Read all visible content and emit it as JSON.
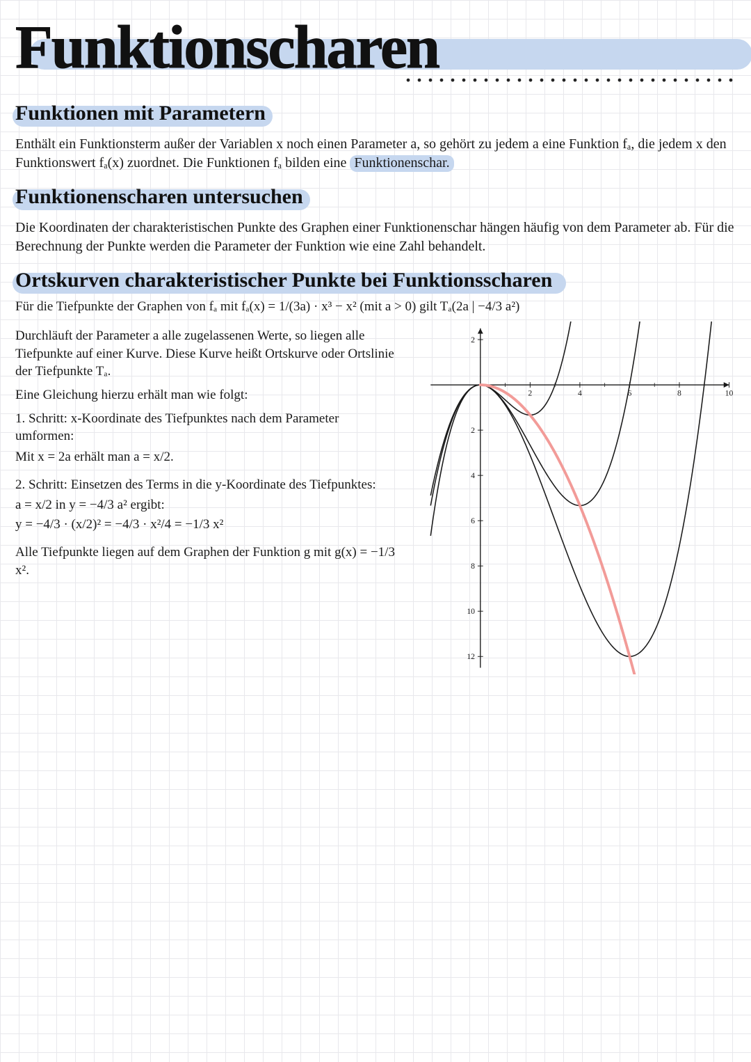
{
  "title": "Funktionscharen",
  "dots": "..............................",
  "sections": {
    "s1": {
      "heading": "Funktionen mit Parametern",
      "body": "Enthält ein Funktionsterm außer der Variablen x noch einen Parameter a, so gehört zu jedem a eine Funktion fₐ, die jedem x den Funktionswert fₐ(x) zuordnet. Die Funktionen fₐ bilden eine",
      "body_hl": "Funktionenschar."
    },
    "s2": {
      "heading": "Funktionenscharen untersuchen",
      "body": "Die Koordinaten der charakteristischen Punkte des Graphen einer Funktionenschar hängen häufig von dem Parameter ab. Für die Berechnung der Punkte werden die Parameter der Funktion wie eine Zahl behandelt."
    },
    "s3": {
      "heading": "Ortskurven charakteristischer Punkte bei Funktionsscharen",
      "formula": "Für die Tiefpunkte der Graphen von fₐ mit fₐ(x) = 1/(3a) · x³ − x²  (mit a > 0)  gilt Tₐ(2a | −4/3 a²)",
      "para1": "Durchläuft der Parameter a alle zugelassenen Werte, so liegen alle Tiefpunkte auf einer Kurve. Diese Kurve heißt Ortskurve oder Ortslinie der Tiefpunkte Tₐ.",
      "para2": "Eine Gleichung hierzu erhält man wie folgt:",
      "step1a": "1. Schritt: x-Koordinate des Tiefpunktes nach dem Parameter umformen:",
      "step1b": "Mit x = 2a erhält man a = x/2.",
      "step2a": "2. Schritt: Einsetzen des Terms in die y-Koordinate des Tiefpunktes:",
      "step2b": "a = x/2  in  y = −4/3 a²  ergibt:",
      "step2c": "y = −4/3 · (x/2)² = −4/3 · x²/4 = −1/3 x²",
      "conclusion": "Alle Tiefpunkte liegen auf dem Graphen der Funktion g mit g(x) = −1/3 x²."
    }
  },
  "chart": {
    "type": "line",
    "background_color": "#ffffff00",
    "axis_color": "#1a1a1a",
    "tick_color": "#1a1a1a",
    "curve_color": "#1a1a1a",
    "locus_color": "#f29b98",
    "locus_width": 4,
    "curve_width": 1.6,
    "xlim": [
      -2,
      10
    ],
    "ylim": [
      -12.5,
      2.5
    ],
    "xticks": [
      2,
      4,
      6,
      8,
      10
    ],
    "yticks": [
      -12,
      -10,
      -8,
      -6,
      -4,
      -2,
      2
    ],
    "label_fontsize": 12,
    "a_values": [
      1,
      2,
      3
    ],
    "locus": "y = -x^2/3",
    "curves_desc": "f_a(x)=x^3/(3a)-x^2"
  },
  "colors": {
    "highlight": "#c6d7ef",
    "grid": "#e8e8ec",
    "text": "#1a1a1a"
  }
}
